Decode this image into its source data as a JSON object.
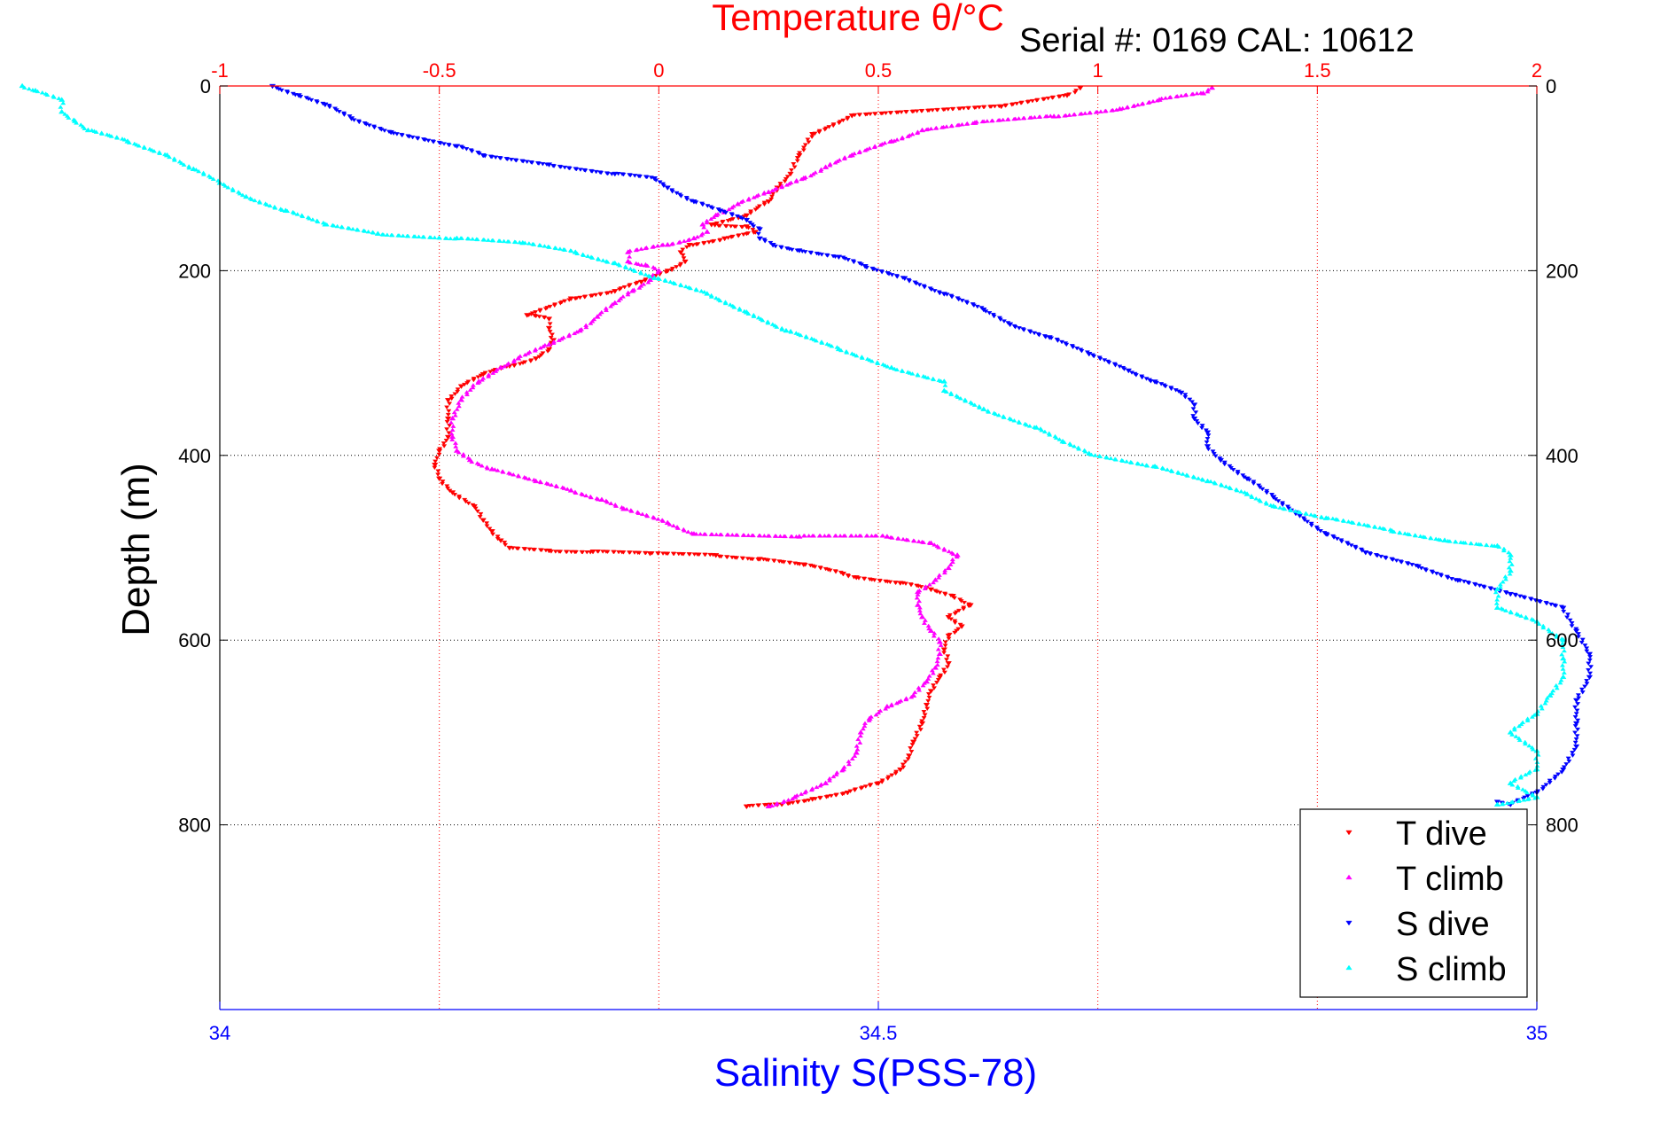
{
  "chart_data": {
    "type": "scatter",
    "title": "Temperature θ/°C",
    "annotation": "Serial #: 0169 CAL: 10612",
    "axes": {
      "temperature": {
        "label": "Temperature θ/°C",
        "range": [
          -1,
          2
        ],
        "ticks": [
          "-1",
          "-0.5",
          "0",
          "0.5",
          "1",
          "1.5",
          "2"
        ],
        "tick_values": [
          -1,
          -0.5,
          0,
          0.5,
          1,
          1.5,
          2
        ],
        "position": "top",
        "color": "#ff0000"
      },
      "salinity": {
        "label": "Salinity S(PSS-78)",
        "range": [
          34,
          35
        ],
        "ticks": [
          "34",
          "34.5",
          "35"
        ],
        "tick_values": [
          34,
          34.5,
          35
        ],
        "position": "bottom",
        "color": "#0000ff"
      },
      "depth": {
        "label": "Depth (m)",
        "range": [
          0,
          1000
        ],
        "reversed": true,
        "ticks": [
          "0",
          "200",
          "400",
          "600",
          "800"
        ],
        "tick_values": [
          0,
          200,
          400,
          600,
          800
        ],
        "position": "left and right"
      }
    },
    "grid": true,
    "legend_position": "bottom-right",
    "series": [
      {
        "name": "T dive",
        "axis": "temperature",
        "marker": "triangle-down",
        "color": "#ff0000",
        "points": [
          [
            0.96,
            2
          ],
          [
            0.93,
            10
          ],
          [
            0.78,
            22
          ],
          [
            0.44,
            32
          ],
          [
            0.35,
            52
          ],
          [
            0.32,
            75
          ],
          [
            0.3,
            95
          ],
          [
            0.27,
            110
          ],
          [
            0.25,
            125
          ],
          [
            0.2,
            140
          ],
          [
            0.12,
            150
          ],
          [
            0.2,
            152
          ],
          [
            0.22,
            158
          ],
          [
            0.15,
            165
          ],
          [
            0.07,
            172
          ],
          [
            0.05,
            180
          ],
          [
            0.06,
            190
          ],
          [
            0.02,
            200
          ],
          [
            -0.04,
            212
          ],
          [
            -0.1,
            222
          ],
          [
            -0.2,
            230
          ],
          [
            -0.3,
            248
          ],
          [
            -0.25,
            252
          ],
          [
            -0.25,
            262
          ],
          [
            -0.24,
            275
          ],
          [
            -0.25,
            285
          ],
          [
            -0.28,
            295
          ],
          [
            -0.34,
            303
          ],
          [
            -0.4,
            312
          ],
          [
            -0.45,
            325
          ],
          [
            -0.48,
            340
          ],
          [
            -0.48,
            360
          ],
          [
            -0.48,
            380
          ],
          [
            -0.5,
            395
          ],
          [
            -0.51,
            410
          ],
          [
            -0.5,
            425
          ],
          [
            -0.47,
            440
          ],
          [
            -0.42,
            455
          ],
          [
            -0.4,
            470
          ],
          [
            -0.38,
            482
          ],
          [
            -0.36,
            492
          ],
          [
            -0.34,
            500
          ],
          [
            -0.25,
            503
          ],
          [
            -0.15,
            504
          ],
          [
            -0.02,
            506
          ],
          [
            0.13,
            508
          ],
          [
            0.23,
            512
          ],
          [
            0.33,
            518
          ],
          [
            0.42,
            528
          ],
          [
            0.45,
            532
          ],
          [
            0.55,
            538
          ],
          [
            0.62,
            545
          ],
          [
            0.67,
            552
          ],
          [
            0.71,
            562
          ],
          [
            0.66,
            575
          ],
          [
            0.69,
            585
          ],
          [
            0.66,
            595
          ],
          [
            0.65,
            610
          ],
          [
            0.66,
            625
          ],
          [
            0.64,
            640
          ],
          [
            0.62,
            655
          ],
          [
            0.61,
            670
          ],
          [
            0.6,
            690
          ],
          [
            0.58,
            710
          ],
          [
            0.57,
            725
          ],
          [
            0.55,
            740
          ],
          [
            0.5,
            755
          ],
          [
            0.43,
            765
          ],
          [
            0.35,
            772
          ],
          [
            0.27,
            778
          ],
          [
            0.2,
            780
          ]
        ]
      },
      {
        "name": "T climb",
        "axis": "temperature",
        "marker": "triangle-up",
        "color": "#ff00ff",
        "points": [
          [
            0.25,
            780
          ],
          [
            0.31,
            770
          ],
          [
            0.38,
            755
          ],
          [
            0.42,
            740
          ],
          [
            0.45,
            722
          ],
          [
            0.46,
            700
          ],
          [
            0.48,
            685
          ],
          [
            0.52,
            672
          ],
          [
            0.58,
            660
          ],
          [
            0.61,
            645
          ],
          [
            0.63,
            630
          ],
          [
            0.64,
            615
          ],
          [
            0.64,
            602
          ],
          [
            0.62,
            590
          ],
          [
            0.6,
            575
          ],
          [
            0.59,
            562
          ],
          [
            0.59,
            548
          ],
          [
            0.63,
            535
          ],
          [
            0.66,
            522
          ],
          [
            0.68,
            508
          ],
          [
            0.62,
            495
          ],
          [
            0.52,
            488
          ],
          [
            0.32,
            488
          ],
          [
            0.08,
            485
          ],
          [
            0.02,
            473
          ],
          [
            -0.08,
            458
          ],
          [
            -0.13,
            448
          ],
          [
            -0.2,
            438
          ],
          [
            -0.28,
            428
          ],
          [
            -0.38,
            415
          ],
          [
            -0.43,
            405
          ],
          [
            -0.46,
            395
          ],
          [
            -0.47,
            380
          ],
          [
            -0.47,
            360
          ],
          [
            -0.45,
            340
          ],
          [
            -0.41,
            320
          ],
          [
            -0.36,
            305
          ],
          [
            -0.32,
            295
          ],
          [
            -0.25,
            280
          ],
          [
            -0.18,
            265
          ],
          [
            -0.14,
            250
          ],
          [
            -0.1,
            235
          ],
          [
            -0.06,
            222
          ],
          [
            -0.02,
            210
          ],
          [
            0.0,
            200
          ],
          [
            -0.03,
            194
          ],
          [
            -0.07,
            190
          ],
          [
            -0.07,
            180
          ],
          [
            0.02,
            172
          ],
          [
            0.08,
            165
          ],
          [
            0.11,
            158
          ],
          [
            0.1,
            150
          ],
          [
            0.13,
            140
          ],
          [
            0.18,
            128
          ],
          [
            0.25,
            115
          ],
          [
            0.33,
            100
          ],
          [
            0.38,
            88
          ],
          [
            0.44,
            75
          ],
          [
            0.53,
            60
          ],
          [
            0.6,
            48
          ],
          [
            0.72,
            40
          ],
          [
            0.9,
            33
          ],
          [
            1.05,
            25
          ],
          [
            1.14,
            15
          ],
          [
            1.24,
            8
          ],
          [
            1.26,
            2
          ]
        ]
      },
      {
        "name": "S dive",
        "axis": "salinity",
        "marker": "triangle-down",
        "color": "#0000ff",
        "points": [
          [
            34.04,
            0
          ],
          [
            34.06,
            10
          ],
          [
            34.08,
            20
          ],
          [
            34.1,
            35
          ],
          [
            34.13,
            50
          ],
          [
            34.18,
            65
          ],
          [
            34.2,
            75
          ],
          [
            34.25,
            85
          ],
          [
            34.3,
            95
          ],
          [
            34.33,
            100
          ],
          [
            34.34,
            110
          ],
          [
            34.36,
            125
          ],
          [
            34.38,
            135
          ],
          [
            34.4,
            145
          ],
          [
            34.41,
            155
          ],
          [
            34.41,
            165
          ],
          [
            34.42,
            172
          ],
          [
            34.44,
            178
          ],
          [
            34.47,
            185
          ],
          [
            34.49,
            195
          ],
          [
            34.52,
            208
          ],
          [
            34.55,
            225
          ],
          [
            34.58,
            242
          ],
          [
            34.6,
            258
          ],
          [
            34.63,
            272
          ],
          [
            34.66,
            290
          ],
          [
            34.69,
            308
          ],
          [
            34.71,
            320
          ],
          [
            34.73,
            332
          ],
          [
            34.74,
            345
          ],
          [
            34.74,
            360
          ],
          [
            34.75,
            375
          ],
          [
            34.75,
            390
          ],
          [
            34.76,
            405
          ],
          [
            34.78,
            425
          ],
          [
            34.8,
            445
          ],
          [
            34.82,
            465
          ],
          [
            34.84,
            485
          ],
          [
            34.87,
            505
          ],
          [
            34.91,
            520
          ],
          [
            34.94,
            535
          ],
          [
            34.98,
            550
          ],
          [
            35.02,
            565
          ],
          [
            35.03,
            590
          ],
          [
            35.04,
            615
          ],
          [
            35.04,
            640
          ],
          [
            35.03,
            665
          ],
          [
            35.03,
            690
          ],
          [
            35.03,
            715
          ],
          [
            35.02,
            740
          ],
          [
            35.0,
            765
          ],
          [
            34.98,
            778
          ],
          [
            34.97,
            775
          ]
        ]
      },
      {
        "name": "S climb",
        "axis": "salinity",
        "marker": "triangle-up",
        "color": "#00ffff",
        "points": [
          [
            34.97,
            778
          ],
          [
            35.0,
            770
          ],
          [
            34.98,
            755
          ],
          [
            35.0,
            740
          ],
          [
            35.0,
            720
          ],
          [
            34.98,
            700
          ],
          [
            35.0,
            680
          ],
          [
            35.01,
            660
          ],
          [
            35.02,
            640
          ],
          [
            35.02,
            620
          ],
          [
            35.02,
            600
          ],
          [
            35.0,
            580
          ],
          [
            34.97,
            565
          ],
          [
            34.97,
            545
          ],
          [
            34.98,
            525
          ],
          [
            34.98,
            508
          ],
          [
            34.97,
            498
          ],
          [
            34.93,
            492
          ],
          [
            34.89,
            482
          ],
          [
            34.84,
            468
          ],
          [
            34.8,
            455
          ],
          [
            34.78,
            442
          ],
          [
            34.75,
            428
          ],
          [
            34.71,
            412
          ],
          [
            34.66,
            398
          ],
          [
            34.64,
            385
          ],
          [
            34.62,
            370
          ],
          [
            34.58,
            350
          ],
          [
            34.55,
            330
          ],
          [
            34.55,
            320
          ],
          [
            34.51,
            305
          ],
          [
            34.47,
            285
          ],
          [
            34.43,
            265
          ],
          [
            34.4,
            245
          ],
          [
            34.37,
            225
          ],
          [
            34.33,
            208
          ],
          [
            34.3,
            192
          ],
          [
            34.27,
            180
          ],
          [
            34.23,
            170
          ],
          [
            34.18,
            165
          ],
          [
            34.12,
            160
          ],
          [
            34.08,
            150
          ],
          [
            34.05,
            135
          ],
          [
            34.02,
            120
          ],
          [
            34.0,
            105
          ],
          [
            33.98,
            90
          ],
          [
            33.96,
            75
          ],
          [
            33.93,
            60
          ],
          [
            33.9,
            48
          ],
          [
            33.89,
            38
          ],
          [
            33.88,
            28
          ],
          [
            33.88,
            15
          ],
          [
            33.86,
            5
          ],
          [
            33.85,
            0
          ]
        ]
      }
    ]
  }
}
